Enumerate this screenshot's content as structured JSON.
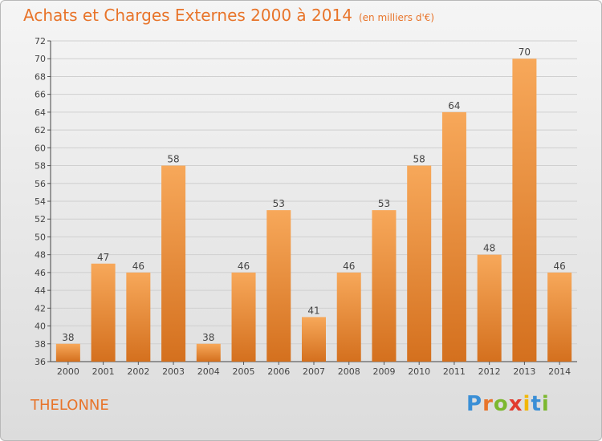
{
  "title": "Achats et Charges Externes 2000 à 2014",
  "subtitle": "(en milliers d'€)",
  "commune": "THELONNE",
  "logo": {
    "letters": [
      "P",
      "r",
      "o",
      "x",
      "i",
      "t",
      "i"
    ],
    "colors": [
      "#3a8fd6",
      "#e8742a",
      "#7cb82f",
      "#e23b2e",
      "#f2b705",
      "#3a8fd6",
      "#7cb82f"
    ]
  },
  "colors": {
    "bar_light": "#f7a85a",
    "bar_dark": "#d4701e",
    "title": "#e8742a",
    "grid": "#cfcfcf"
  },
  "chart_data": {
    "type": "bar",
    "title": "Achats et Charges Externes 2000 à 2014",
    "categories": [
      "2000",
      "2001",
      "2002",
      "2003",
      "2004",
      "2005",
      "2006",
      "2007",
      "2008",
      "2009",
      "2010",
      "2011",
      "2012",
      "2013",
      "2014"
    ],
    "values": [
      38,
      47,
      46,
      58,
      38,
      46,
      53,
      41,
      46,
      53,
      58,
      64,
      48,
      70,
      46
    ],
    "ylim": [
      36,
      72
    ],
    "yticks": [
      36,
      38,
      40,
      42,
      44,
      46,
      48,
      50,
      52,
      54,
      56,
      58,
      60,
      62,
      64,
      66,
      68,
      70,
      72
    ],
    "grid": true,
    "data_labels": true
  }
}
